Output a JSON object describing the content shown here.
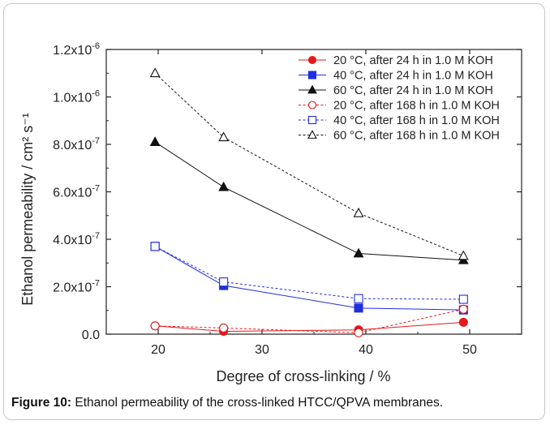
{
  "chart_data": {
    "type": "line",
    "xlabel": "Degree of cross-linking / %",
    "ylabel": "Ethanol permeability / cm² s⁻¹",
    "xlim": [
      15,
      55
    ],
    "ylim": [
      0,
      1.2e-06
    ],
    "x_ticks": [
      20,
      30,
      40,
      50
    ],
    "x_tick_labels": [
      "20",
      "30",
      "40",
      "50"
    ],
    "y_ticks": [
      0,
      2e-07,
      4e-07,
      6e-07,
      8e-07,
      1e-06,
      1.2e-06
    ],
    "y_tick_labels": [
      {
        "mantissa": "0.0",
        "exp": ""
      },
      {
        "mantissa": "2.0x10",
        "exp": "-7"
      },
      {
        "mantissa": "4.0x10",
        "exp": "-7"
      },
      {
        "mantissa": "6.0x10",
        "exp": "-7"
      },
      {
        "mantissa": "8.0x10",
        "exp": "-7"
      },
      {
        "mantissa": "1.0x10",
        "exp": "-6"
      },
      {
        "mantissa": "1.2x10",
        "exp": "-6"
      }
    ],
    "legend_position": "top-right",
    "grid": false,
    "series": [
      {
        "name": "20 °C, after 24 h in 1.0 M KOH",
        "color": "#e31a1c",
        "marker": "circle",
        "filled": true,
        "dash": false,
        "x": [
          19.7,
          26.3,
          39.3,
          49.4
        ],
        "values": [
          3.5e-08,
          1.2e-08,
          1.8e-08,
          5e-08
        ]
      },
      {
        "name": "40 °C, after 24 h in 1.0 M KOH",
        "color": "#1f2fe0",
        "marker": "square",
        "filled": true,
        "dash": false,
        "x": [
          19.7,
          26.3,
          39.3,
          49.4
        ],
        "values": [
          3.7e-07,
          2.05e-07,
          1.1e-07,
          1.02e-07
        ]
      },
      {
        "name": "60 °C, after 24 h in 1.0 M KOH",
        "color": "#111111",
        "marker": "triangle",
        "filled": true,
        "dash": false,
        "x": [
          19.7,
          26.3,
          39.3,
          49.4
        ],
        "values": [
          8.1e-07,
          6.2e-07,
          3.4e-07,
          3.12e-07
        ]
      },
      {
        "name": "20 °C, after 168 h in 1.0 M KOH",
        "color": "#e31a1c",
        "marker": "circle",
        "filled": false,
        "dash": true,
        "x": [
          19.7,
          26.3,
          39.3,
          49.4
        ],
        "values": [
          3.5e-08,
          2.6e-08,
          6e-09,
          1.05e-07
        ]
      },
      {
        "name": "40 °C, after 168 h in 1.0 M KOH",
        "color": "#1f2fe0",
        "marker": "square",
        "filled": false,
        "dash": true,
        "x": [
          19.7,
          26.3,
          39.3,
          49.4
        ],
        "values": [
          3.7e-07,
          2.2e-07,
          1.5e-07,
          1.47e-07
        ]
      },
      {
        "name": "60 °C, after 168 h in 1.0 M KOH",
        "color": "#111111",
        "marker": "triangle",
        "filled": false,
        "dash": true,
        "x": [
          19.7,
          26.3,
          39.3,
          49.4
        ],
        "values": [
          1.1e-06,
          8.3e-07,
          5.1e-07,
          3.3e-07
        ]
      }
    ]
  },
  "caption": {
    "label": "Figure 10:",
    "text": " Ethanol permeability of the cross-linked HTCC/QPVA membranes."
  }
}
